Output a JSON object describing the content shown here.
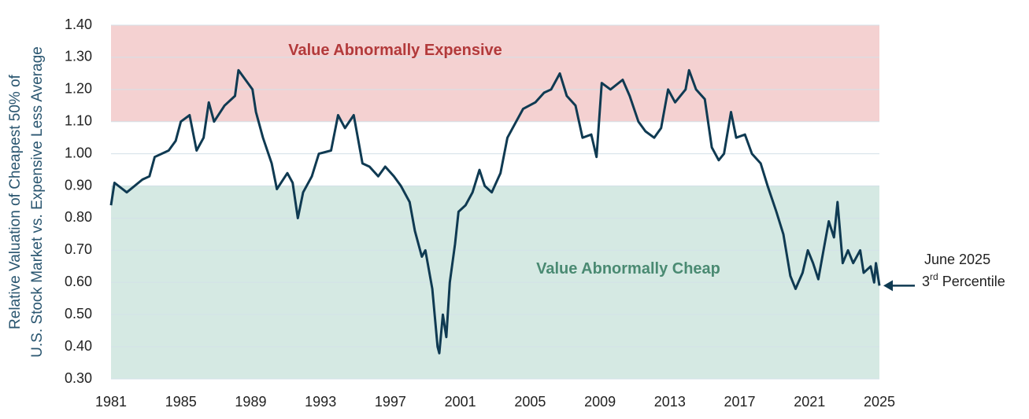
{
  "chart_data": {
    "type": "line",
    "y_axis_label": [
      "Relative Valuation of Cheapest 50% of",
      "U.S. Stock Market vs. Expensive Less Average"
    ],
    "xlim": [
      1981,
      2025
    ],
    "xticks": [
      1981,
      1985,
      1989,
      1993,
      1997,
      2001,
      2005,
      2009,
      2013,
      2017,
      2021,
      2025
    ],
    "ylim": [
      0.3,
      1.4
    ],
    "yticks": [
      {
        "value": 0.3,
        "label": "0.30"
      },
      {
        "value": 0.4,
        "label": "0.40"
      },
      {
        "value": 0.5,
        "label": "0.50"
      },
      {
        "value": 0.6,
        "label": "0.60"
      },
      {
        "value": 0.7,
        "label": "0.70"
      },
      {
        "value": 0.8,
        "label": "0.80"
      },
      {
        "value": 0.9,
        "label": "0.90"
      },
      {
        "value": 1.0,
        "label": "1.00"
      },
      {
        "value": 1.1,
        "label": "1.10"
      },
      {
        "value": 1.2,
        "label": "1.20"
      },
      {
        "value": 1.3,
        "label": "1.30"
      },
      {
        "value": 1.4,
        "label": "1.40"
      }
    ],
    "grid": true,
    "bands": [
      {
        "label": "Value Abnormally Expensive",
        "range": [
          1.1,
          1.4
        ],
        "color": "#f4d1d1",
        "label_color": "#b23a3b"
      },
      {
        "label": "Value Abnormally Cheap",
        "range": [
          0.3,
          0.9
        ],
        "color": "#d5e9e3",
        "label_color": "#4a8a72"
      }
    ],
    "annotation": {
      "lines": [
        "June 2025",
        [
          "3",
          "rd",
          " Percentile"
        ]
      ]
    },
    "x": [
      1981.0,
      1981.2,
      1981.9,
      1982.8,
      1983.2,
      1983.5,
      1984.3,
      1984.7,
      1985.0,
      1985.5,
      1985.9,
      1986.3,
      1986.6,
      1986.9,
      1987.5,
      1988.1,
      1988.3,
      1988.7,
      1989.1,
      1989.3,
      1989.7,
      1990.2,
      1990.5,
      1991.1,
      1991.4,
      1991.7,
      1992.0,
      1992.5,
      1992.9,
      1993.6,
      1994.0,
      1994.4,
      1994.9,
      1995.4,
      1995.8,
      1996.3,
      1996.7,
      1997.2,
      1997.6,
      1998.1,
      1998.4,
      1998.8,
      1999.0,
      1999.4,
      1999.7,
      1999.8,
      2000.0,
      2000.2,
      2000.4,
      2000.7,
      2000.9,
      2001.3,
      2001.7,
      2002.1,
      2002.4,
      2002.8,
      2003.3,
      2003.7,
      2004.2,
      2004.6,
      2005.3,
      2005.8,
      2006.2,
      2006.7,
      2007.1,
      2007.6,
      2008.0,
      2008.5,
      2008.8,
      2009.1,
      2009.6,
      2010.3,
      2010.7,
      2011.2,
      2011.6,
      2012.1,
      2012.5,
      2012.9,
      2013.3,
      2013.9,
      2014.1,
      2014.5,
      2015.0,
      2015.4,
      2015.8,
      2016.1,
      2016.5,
      2016.8,
      2017.3,
      2017.7,
      2018.2,
      2018.6,
      2019.1,
      2019.5,
      2019.9,
      2020.2,
      2020.6,
      2020.9,
      2021.2,
      2021.5,
      2021.8,
      2022.1,
      2022.4,
      2022.6,
      2022.9,
      2023.2,
      2023.5,
      2023.9,
      2024.1,
      2024.5,
      2024.7,
      2024.8,
      2025.0
    ],
    "series": [
      {
        "color": "#0f3a52",
        "values": [
          0.84,
          0.91,
          0.88,
          0.92,
          0.93,
          0.99,
          1.01,
          1.04,
          1.1,
          1.12,
          1.01,
          1.05,
          1.16,
          1.1,
          1.15,
          1.18,
          1.26,
          1.23,
          1.2,
          1.13,
          1.05,
          0.97,
          0.89,
          0.94,
          0.91,
          0.8,
          0.88,
          0.93,
          1.0,
          1.01,
          1.12,
          1.08,
          1.12,
          0.97,
          0.96,
          0.93,
          0.96,
          0.93,
          0.9,
          0.85,
          0.76,
          0.68,
          0.7,
          0.58,
          0.4,
          0.38,
          0.5,
          0.43,
          0.6,
          0.72,
          0.82,
          0.84,
          0.88,
          0.95,
          0.9,
          0.88,
          0.94,
          1.05,
          1.1,
          1.14,
          1.16,
          1.19,
          1.2,
          1.25,
          1.18,
          1.15,
          1.05,
          1.06,
          0.99,
          1.22,
          1.2,
          1.23,
          1.18,
          1.1,
          1.07,
          1.05,
          1.08,
          1.2,
          1.16,
          1.2,
          1.26,
          1.2,
          1.17,
          1.02,
          0.98,
          1.0,
          1.13,
          1.05,
          1.06,
          1.0,
          0.97,
          0.9,
          0.82,
          0.75,
          0.62,
          0.58,
          0.63,
          0.7,
          0.66,
          0.61,
          0.7,
          0.79,
          0.74,
          0.85,
          0.66,
          0.7,
          0.66,
          0.7,
          0.63,
          0.65,
          0.6,
          0.66,
          0.59
        ]
      }
    ]
  }
}
